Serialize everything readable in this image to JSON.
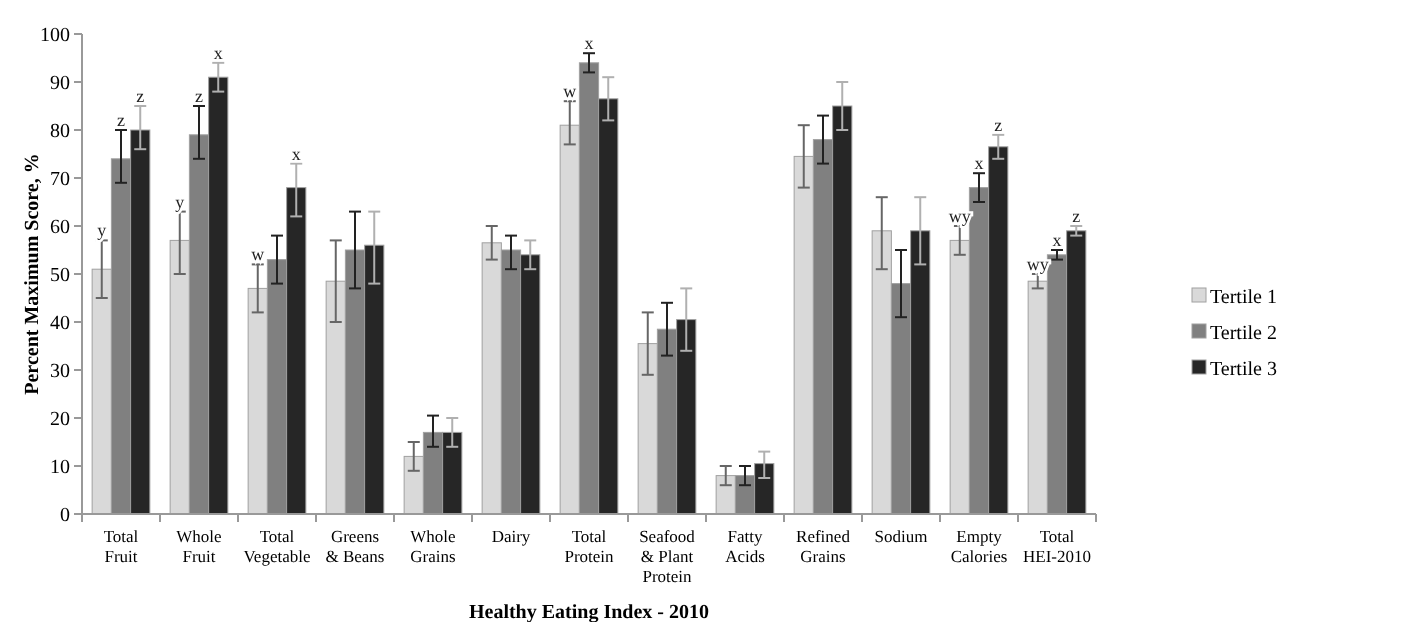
{
  "chart_data": {
    "type": "bar",
    "xlabel": "Healthy Eating Index - 2010",
    "ylabel": "Percent Maximum Score, %",
    "categories": [
      "Total Fruit",
      "Whole Fruit",
      "Total Vegetable",
      "Greens & Beans",
      "Whole Grains",
      "Dairy",
      "Total Protein",
      "Seafood & Plant Protein",
      "Fatty Acids",
      "Refined Grains",
      "Sodium",
      "Empty Calories",
      "Total HEI-2010"
    ],
    "series": [
      {
        "name": "Tertile 1",
        "color": "#d9d9d9",
        "values": [
          51,
          57,
          47,
          48.5,
          12,
          56.5,
          81,
          35.5,
          8,
          74.5,
          59,
          57,
          48.5
        ],
        "errors": [
          [
            45,
            57
          ],
          [
            50,
            63
          ],
          [
            42,
            52
          ],
          [
            40,
            57
          ],
          [
            9,
            15
          ],
          [
            53,
            60
          ],
          [
            77,
            86
          ],
          [
            29,
            42
          ],
          [
            6,
            10
          ],
          [
            68,
            81
          ],
          [
            51,
            66
          ],
          [
            54,
            60
          ],
          [
            47,
            50
          ]
        ],
        "value_labels": [
          "y",
          "y",
          "w",
          null,
          null,
          null,
          "w",
          null,
          null,
          null,
          null,
          "wy",
          "wy"
        ]
      },
      {
        "name": "Tertile 2",
        "color": "#808080",
        "values": [
          74,
          79,
          53,
          55,
          17,
          55,
          94,
          38.5,
          8,
          78,
          48,
          68,
          54
        ],
        "errors": [
          [
            69,
            80
          ],
          [
            74,
            85
          ],
          [
            48,
            58
          ],
          [
            47,
            63
          ],
          [
            14,
            20.5
          ],
          [
            51,
            58
          ],
          [
            92,
            96
          ],
          [
            33,
            44
          ],
          [
            6,
            10
          ],
          [
            73,
            83
          ],
          [
            41,
            55
          ],
          [
            65,
            71
          ],
          [
            53,
            55
          ]
        ],
        "value_labels": [
          "z",
          "z",
          null,
          null,
          null,
          null,
          "x",
          null,
          null,
          null,
          null,
          "x",
          "x"
        ]
      },
      {
        "name": "Tertile 3",
        "color": "#262626",
        "values": [
          80,
          91,
          68,
          56,
          17,
          54,
          86.5,
          40.5,
          10.5,
          85,
          59,
          76.5,
          59
        ],
        "errors": [
          [
            76,
            85
          ],
          [
            88,
            94
          ],
          [
            62,
            73
          ],
          [
            48,
            63
          ],
          [
            14,
            20
          ],
          [
            51,
            57
          ],
          [
            82,
            91
          ],
          [
            34,
            47
          ],
          [
            7.5,
            13
          ],
          [
            80,
            90
          ],
          [
            52,
            66
          ],
          [
            74,
            79
          ],
          [
            58,
            60
          ]
        ],
        "value_labels": [
          "z",
          "x",
          "x",
          null,
          null,
          null,
          null,
          null,
          null,
          null,
          null,
          "z",
          "z"
        ]
      }
    ],
    "ylim": [
      0,
      100
    ],
    "yticks": [
      0,
      10,
      20,
      30,
      40,
      50,
      60,
      70,
      80,
      90,
      100
    ],
    "legend": "right"
  }
}
